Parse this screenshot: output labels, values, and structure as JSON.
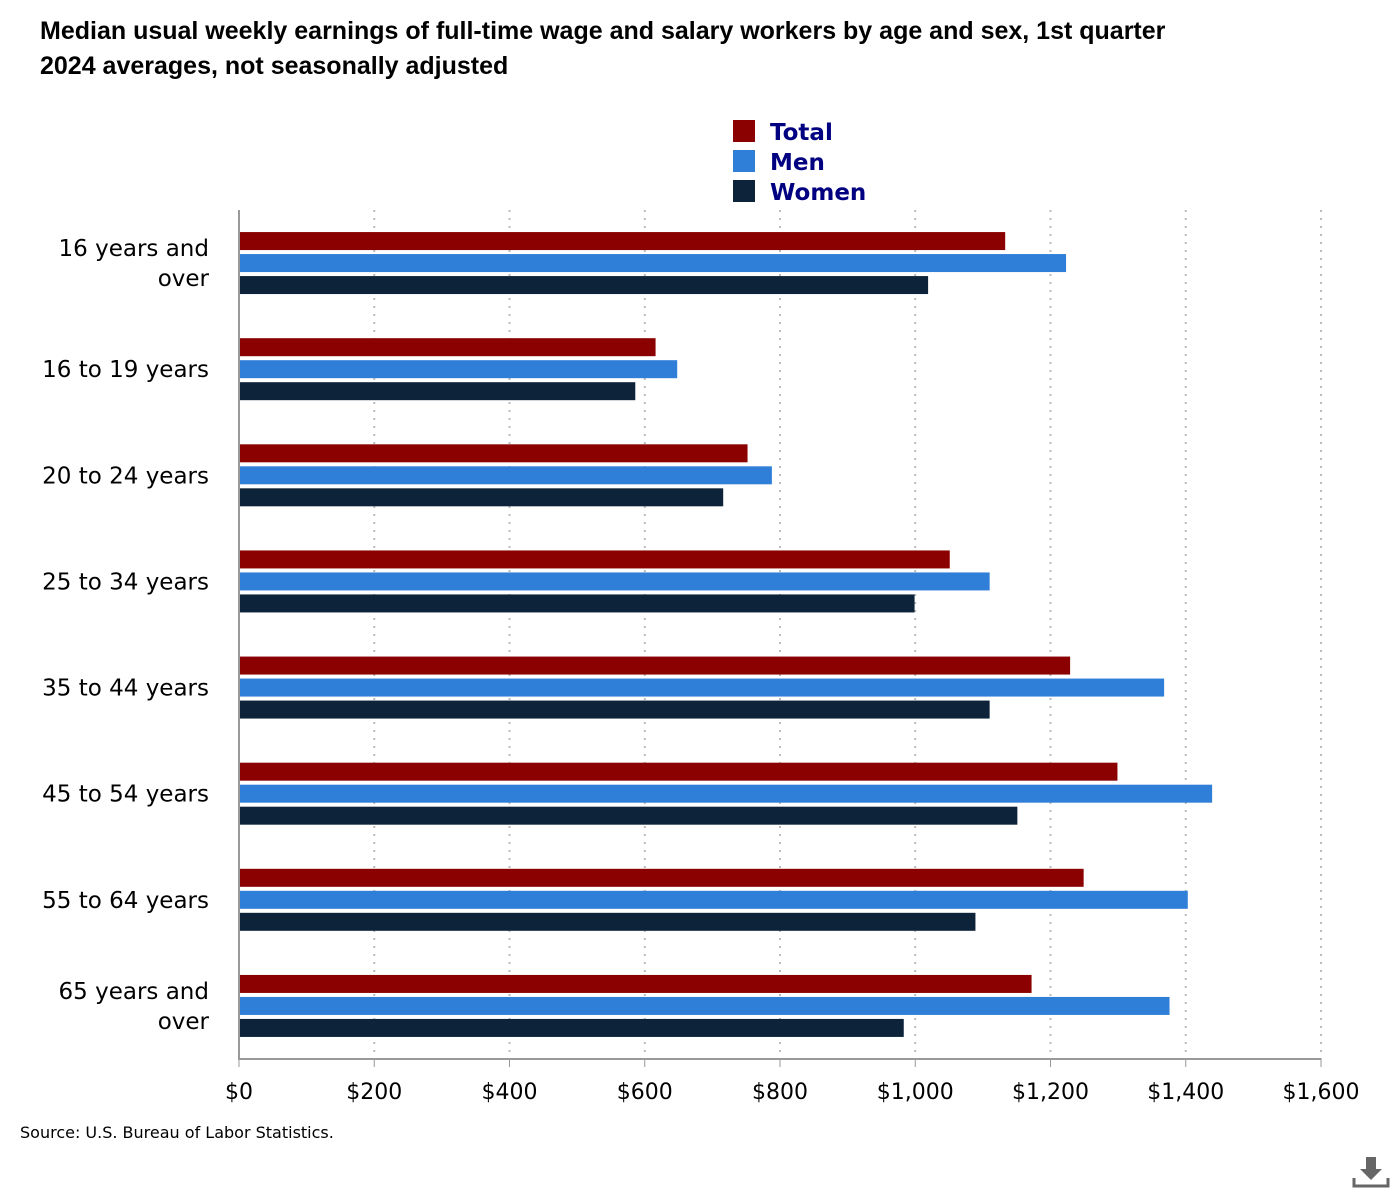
{
  "title": {
    "line1": "Median usual weekly earnings of full-time wage and salary workers by age and sex, 1st quarter",
    "line2": "2024 averages, not seasonally adjusted"
  },
  "source": "Source: U.S. Bureau of Labor Statistics.",
  "download_icon": "download-icon",
  "colors": {
    "total": "#8b0000",
    "men": "#2f7ed8",
    "women": "#0d233a",
    "legend_text": "#000080",
    "axis": "#999999",
    "grid": "#bbbbbb"
  },
  "chart_data": {
    "type": "bar",
    "orientation": "horizontal",
    "categories": [
      [
        "16 years and",
        "over"
      ],
      [
        "16 to 19 years"
      ],
      [
        "20 to 24 years"
      ],
      [
        "25 to 34 years"
      ],
      [
        "35 to 44 years"
      ],
      [
        "45 to 54 years"
      ],
      [
        "55 to 64 years"
      ],
      [
        "65 years and",
        "over"
      ]
    ],
    "series": [
      {
        "name": "Total",
        "color": "#8b0000",
        "values": [
          1133,
          616,
          752,
          1051,
          1229,
          1299,
          1249,
          1172
        ]
      },
      {
        "name": "Men",
        "color": "#2f7ed8",
        "values": [
          1223,
          648,
          788,
          1110,
          1368,
          1439,
          1403,
          1376
        ]
      },
      {
        "name": "Women",
        "color": "#0d233a",
        "values": [
          1019,
          586,
          716,
          999,
          1110,
          1151,
          1089,
          983
        ]
      }
    ],
    "xlim": [
      0,
      1600
    ],
    "xticks": [
      0,
      200,
      400,
      600,
      800,
      1000,
      1200,
      1400,
      1600
    ],
    "xtick_labels": [
      "$0",
      "$200",
      "$400",
      "$600",
      "$800",
      "$1,000",
      "$1,200",
      "$1,400",
      "$1,600"
    ],
    "grid": true,
    "legend": "top-center"
  }
}
